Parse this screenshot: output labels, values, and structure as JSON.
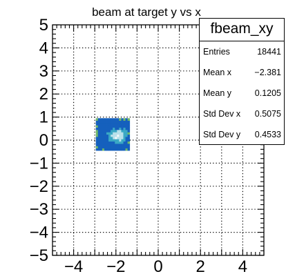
{
  "chart_data": {
    "type": "heatmap",
    "title": "beam at target y vs x",
    "xlabel": "",
    "ylabel": "",
    "xlim": [
      -5,
      5
    ],
    "ylim": [
      -5,
      5
    ],
    "xticks": [
      "−4",
      "−2",
      "0",
      "2",
      "4"
    ],
    "yticks": [
      "5",
      "4",
      "3",
      "2",
      "1",
      "0",
      "−1",
      "−2",
      "−3",
      "−4",
      "−5"
    ],
    "grid": true,
    "data_region": {
      "x_range": [
        -2.95,
        -1.35
      ],
      "y_range": [
        -0.45,
        0.95
      ],
      "peak": [
        -1.9,
        0.2
      ]
    },
    "colors": {
      "low": "#1560bd",
      "mid": "#3aa8c4",
      "high": "#b8e0ea",
      "peak": "#f2f7f8",
      "edge": "#6fb86a"
    }
  },
  "stats": {
    "title": "fbeam_xy",
    "rows": [
      {
        "label": "Entries",
        "value": "18441"
      },
      {
        "label": "Mean x",
        "value": "−2.381"
      },
      {
        "label": "Mean y",
        "value": "0.1205"
      },
      {
        "label": "Std Dev x",
        "value": "0.5075"
      },
      {
        "label": "Std Dev y",
        "value": "0.4533"
      }
    ]
  }
}
